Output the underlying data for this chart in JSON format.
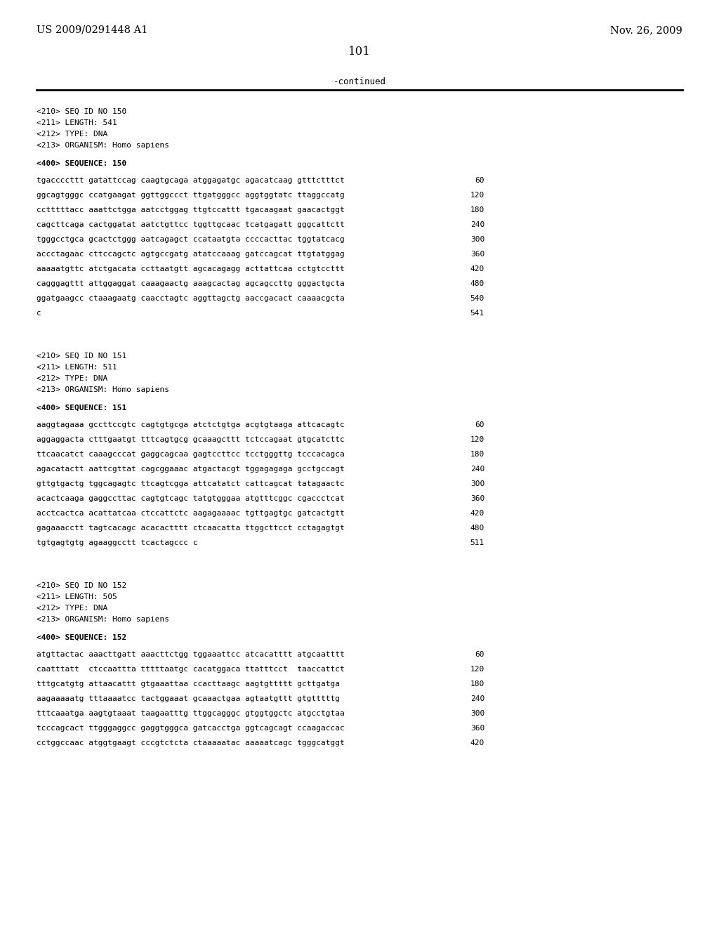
{
  "header_left": "US 2009/0291448 A1",
  "header_right": "Nov. 26, 2009",
  "page_number": "101",
  "continued_label": "-continued",
  "background_color": "#ffffff",
  "text_color": "#000000",
  "sections": [
    {
      "meta": [
        "<210> SEQ ID NO 150",
        "<211> LENGTH: 541",
        "<212> TYPE: DNA",
        "<213> ORGANISM: Homo sapiens"
      ],
      "seq_header": "<400> SEQUENCE: 150",
      "sequences": [
        {
          "seq": "tgaccccttt gatattccag caagtgcaga atggagatgc agacatcaag gtttctttct",
          "num": "60"
        },
        {
          "seq": "ggcagtgggc ccatgaagat ggttggccct ttgatgggcc aggtggtatc ttaggccatg",
          "num": "120"
        },
        {
          "seq": "cctttttacc aaattctgga aatcctggag ttgtccattt tgacaagaat gaacactggt",
          "num": "180"
        },
        {
          "seq": "cagcttcaga cactggatat aatctgttcc tggttgcaac tcatgagatt gggcattctt",
          "num": "240"
        },
        {
          "seq": "tgggcctgca gcactctggg aatcagagct ccataatgta ccccacttac tggtatcacg",
          "num": "300"
        },
        {
          "seq": "accctagaac cttccagctc agtgccgatg atatccaaag gatccagcat ttgtatggag",
          "num": "360"
        },
        {
          "seq": "aaaaatgttc atctgacata ccttaatgtt agcacagagg acttattcaa cctgtccttt",
          "num": "420"
        },
        {
          "seq": "cagggagttt attggaggat caaagaactg aaagcactag agcagccttg gggactgcta",
          "num": "480"
        },
        {
          "seq": "ggatgaagcc ctaaagaatg caacctagtc aggttagctg aaccgacact caaaacgcta",
          "num": "540"
        },
        {
          "seq": "c",
          "num": "541"
        }
      ]
    },
    {
      "meta": [
        "<210> SEQ ID NO 151",
        "<211> LENGTH: 511",
        "<212> TYPE: DNA",
        "<213> ORGANISM: Homo sapiens"
      ],
      "seq_header": "<400> SEQUENCE: 151",
      "sequences": [
        {
          "seq": "aaggtagaaa gccttccgtc cagtgtgcga atctctgtga acgtgtaaga attcacagtc",
          "num": "60"
        },
        {
          "seq": "aggaggacta ctttgaatgt tttcagtgcg gcaaagcttt tctccagaat gtgcatcttc",
          "num": "120"
        },
        {
          "seq": "ttcaacatct caaagcccat gaggcagcaa gagtccttcc tcctgggttg tcccacagca",
          "num": "180"
        },
        {
          "seq": "agacatactt aattcgttat cagcggaaac atgactacgt tggagagaga gcctgccagt",
          "num": "240"
        },
        {
          "seq": "gttgtgactg tggcagagtc ttcagtcgga attcatatct cattcagcat tatagaactc",
          "num": "300"
        },
        {
          "seq": "acactcaaga gaggccttac cagtgtcagc tatgtgggaa atgtttcggc cgaccctcat",
          "num": "360"
        },
        {
          "seq": "acctcactca acattatcaa ctccattctc aagagaaaac tgttgagtgc gatcactgtt",
          "num": "420"
        },
        {
          "seq": "gagaaacctt tagtcacagc acacactttt ctcaacatta ttggcttcct cctagagtgt",
          "num": "480"
        },
        {
          "seq": "tgtgagtgtg agaaggcctt tcactagccc c",
          "num": "511"
        }
      ]
    },
    {
      "meta": [
        "<210> SEQ ID NO 152",
        "<211> LENGTH: 505",
        "<212> TYPE: DNA",
        "<213> ORGANISM: Homo sapiens"
      ],
      "seq_header": "<400> SEQUENCE: 152",
      "sequences": [
        {
          "seq": "atgttactac aaacttgatt aaacttctgg tggaaattcc atcacatttt atgcaatttt",
          "num": "60"
        },
        {
          "seq": "caatttatt  ctccaattta tttttaatgc cacatggaca ttatttcct  taaccattct",
          "num": "120"
        },
        {
          "seq": "tttgcatgtg attaacattt gtgaaattaa ccacttaagc aagtgttttt gcttgatga",
          "num": "180"
        },
        {
          "seq": "aagaaaaatg tttaaaatcc tactggaaat gcaaactgaa agtaatgttt gtgtttttg",
          "num": "240"
        },
        {
          "seq": "tttcaaatga aagtgtaaat taagaatttg ttggcagggc gtggtggctc atgcctgtaa",
          "num": "300"
        },
        {
          "seq": "tcccagcact ttgggaggcc gaggtgggca gatcacctga ggtcagcagt ccaagaccac",
          "num": "360"
        },
        {
          "seq": "cctggccaac atggtgaagt cccgtctcta ctaaaaatac aaaaatcagc tgggcatggt",
          "num": "420"
        }
      ]
    }
  ]
}
